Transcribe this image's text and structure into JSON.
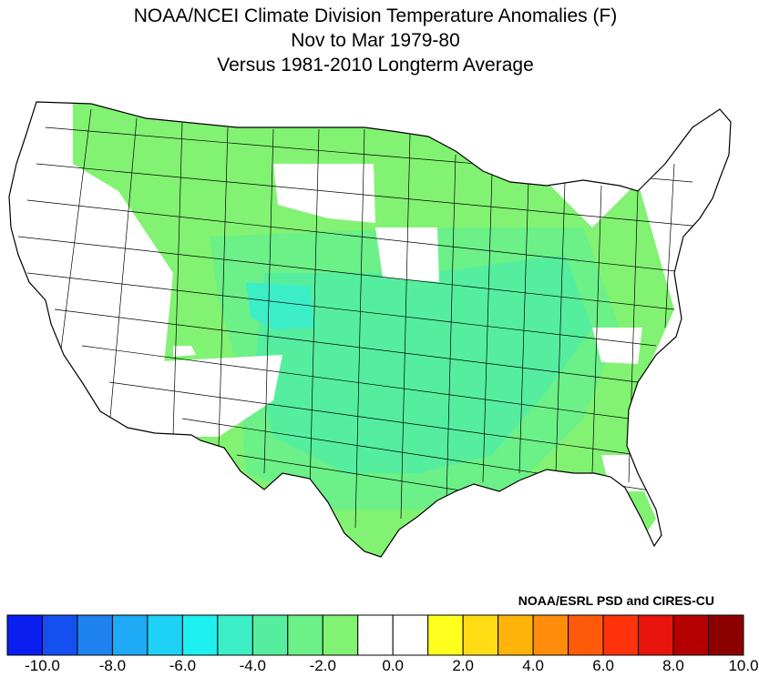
{
  "header": {
    "line1": "NOAA/NCEI Climate Division Temperature Anomalies (F)",
    "line2": "Nov to Mar 1979-80",
    "line3": "Versus 1981-2010 Longterm Average"
  },
  "credit": "NOAA/ESRL PSD and CIRES-CU",
  "legend": {
    "colors": [
      "#0a1ef0",
      "#1450f0",
      "#1e82f0",
      "#1eaaf5",
      "#1ed2f5",
      "#1ef0f0",
      "#3ceec8",
      "#55ee9e",
      "#6cf088",
      "#82f273",
      "#ffffff",
      "#ffffff",
      "#ffff1e",
      "#ffdc14",
      "#ffb40a",
      "#ff8c0a",
      "#ff5a0a",
      "#ff320a",
      "#e6140a",
      "#b40000",
      "#8c0000"
    ],
    "labels": [
      "-10.0",
      "-8.0",
      "-6.0",
      "-4.0",
      "-2.0",
      "0.0",
      "2.0",
      "4.0",
      "6.0",
      "8.0",
      "10.0"
    ]
  },
  "map": {
    "colors": {
      "outside": "#ffffff",
      "neutral": "#ffffff",
      "anom_m1": "#82f273",
      "anom_m2": "#6cf088",
      "anom_m3": "#55ee9e",
      "anom_m4": "#3ceec8",
      "border": "#000000"
    }
  }
}
